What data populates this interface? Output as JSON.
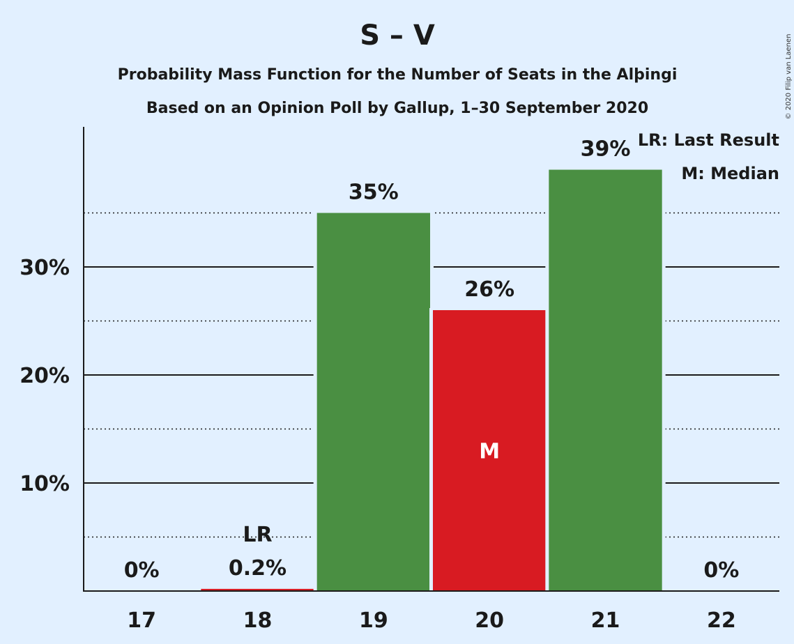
{
  "title": "S – V",
  "subtitle1": "Probability Mass Function for the Number of Seats in the Alþingi",
  "subtitle2": "Based on an Opinion Poll by Gallup, 1–30 September 2020",
  "legend": {
    "lr": "LR: Last Result",
    "m": "M: Median"
  },
  "copyright": "© 2020 Filip van Laenen",
  "colors": {
    "background": "#e2f0ff",
    "green": "#4a8f42",
    "red": "#d81b22",
    "text": "#1a1a1a"
  },
  "chart_data": {
    "type": "bar",
    "categories": [
      "17",
      "18",
      "19",
      "20",
      "21",
      "22"
    ],
    "values": [
      0,
      0.2,
      35,
      26,
      39,
      0
    ],
    "value_labels": [
      "0%",
      "0.2%",
      "35%",
      "26%",
      "39%",
      "0%"
    ],
    "bar_colors": [
      "green",
      "red",
      "green",
      "red",
      "green",
      "green"
    ],
    "markers": {
      "last_result": {
        "category": "18",
        "label": "LR"
      },
      "median": {
        "category": "20",
        "label": "M"
      }
    },
    "yticks": [
      10,
      20,
      30
    ],
    "ytick_labels": [
      "10%",
      "20%",
      "30%"
    ],
    "minor_gridlines": [
      5,
      15,
      25,
      35
    ],
    "ylim": [
      0,
      43
    ],
    "grid": true,
    "legend_position": "top-right"
  }
}
